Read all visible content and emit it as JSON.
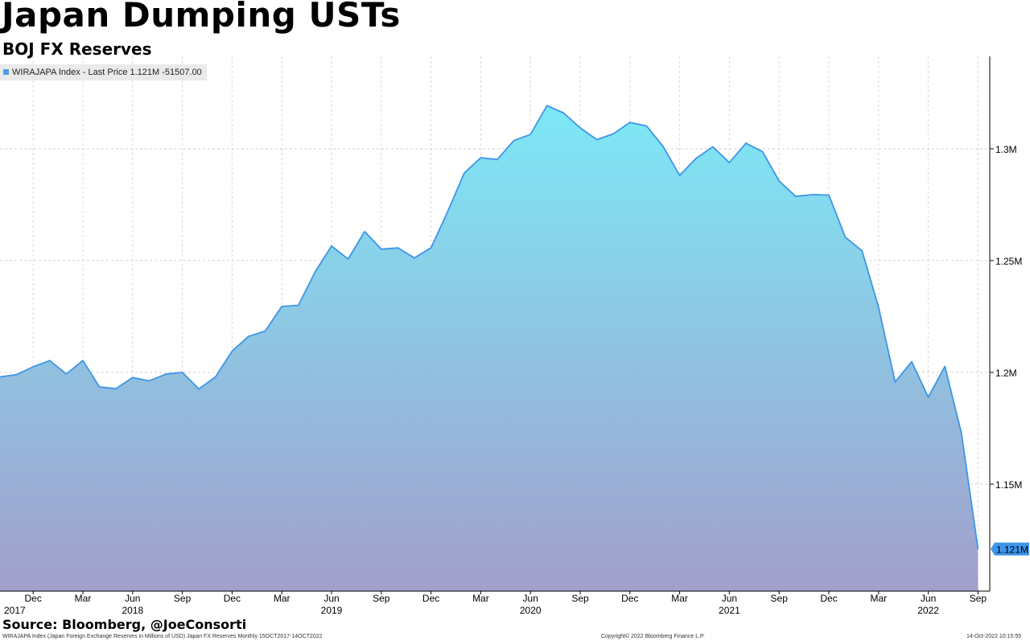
{
  "header": {
    "title": "Japan Dumping USTs",
    "subtitle": "BOJ FX Reserves"
  },
  "legend": {
    "label": "WIRAJAPA Index - Last Price 1.121M -51507.00",
    "swatch_color": "#4a9ee6"
  },
  "footer": {
    "source": "Source: Bloomberg, @JoeConsorti",
    "description": "WIRAJAPA Index (Japan Foreign Exchange Reserves in Millions of USD) Japan FX Reserves  Monthly 15OCT2017-14OCT2022",
    "copyright": "Copyright© 2022 Bloomberg Finance L.P.",
    "timestamp": "14-Oct-2022 10:15:55"
  },
  "chart_data": {
    "type": "area",
    "series": [
      {
        "name": "WIRAJAPA Index",
        "line_color": "#3d95e8",
        "fill_top_color": "#7de8f6",
        "fill_bottom_color": "#a29fcc",
        "x": [
          "2017-10",
          "2017-11",
          "2017-12",
          "2018-01",
          "2018-02",
          "2018-03",
          "2018-04",
          "2018-05",
          "2018-06",
          "2018-07",
          "2018-08",
          "2018-09",
          "2018-10",
          "2018-11",
          "2018-12",
          "2019-01",
          "2019-02",
          "2019-03",
          "2019-04",
          "2019-05",
          "2019-06",
          "2019-07",
          "2019-08",
          "2019-09",
          "2019-10",
          "2019-11",
          "2019-12",
          "2020-01",
          "2020-02",
          "2020-03",
          "2020-04",
          "2020-05",
          "2020-06",
          "2020-07",
          "2020-08",
          "2020-09",
          "2020-10",
          "2020-11",
          "2020-12",
          "2021-01",
          "2021-02",
          "2021-03",
          "2021-04",
          "2021-05",
          "2021-06",
          "2021-07",
          "2021-08",
          "2021-09",
          "2021-10",
          "2021-11",
          "2021-12",
          "2022-01",
          "2022-02",
          "2022-03",
          "2022-04",
          "2022-05",
          "2022-06",
          "2022-07",
          "2022-08",
          "2022-09"
        ],
        "values": [
          1198000,
          1199000,
          1202500,
          1205300,
          1199300,
          1205300,
          1193500,
          1192700,
          1197700,
          1196200,
          1199200,
          1200000,
          1192600,
          1198000,
          1209500,
          1216100,
          1218500,
          1229500,
          1230000,
          1244800,
          1256500,
          1250700,
          1263000,
          1255100,
          1255700,
          1251200,
          1255700,
          1271800,
          1289100,
          1296000,
          1295200,
          1303700,
          1306400,
          1319300,
          1316000,
          1309400,
          1304100,
          1306700,
          1311800,
          1310200,
          1301100,
          1288100,
          1295800,
          1300900,
          1293800,
          1302500,
          1298700,
          1285600,
          1278700,
          1279500,
          1279300,
          1260400,
          1254400,
          1229200,
          1195700,
          1204800,
          1188900,
          1202700,
          1172800,
          1121000
        ]
      }
    ],
    "last_value_label": "1.121M",
    "y_ticks": [
      {
        "value": 1150000,
        "label": "1.15M"
      },
      {
        "value": 1200000,
        "label": "1.2M"
      },
      {
        "value": 1250000,
        "label": "1.25M"
      },
      {
        "value": 1300000,
        "label": "1.3M"
      }
    ],
    "x_ticks": [
      {
        "x": "2017-12",
        "label": "Dec",
        "year": "2017"
      },
      {
        "x": "2018-03",
        "label": "Mar",
        "year": ""
      },
      {
        "x": "2018-06",
        "label": "Jun",
        "year": "2018"
      },
      {
        "x": "2018-09",
        "label": "Sep",
        "year": ""
      },
      {
        "x": "2018-12",
        "label": "Dec",
        "year": ""
      },
      {
        "x": "2019-03",
        "label": "Mar",
        "year": ""
      },
      {
        "x": "2019-06",
        "label": "Jun",
        "year": "2019"
      },
      {
        "x": "2019-09",
        "label": "Sep",
        "year": ""
      },
      {
        "x": "2019-12",
        "label": "Dec",
        "year": ""
      },
      {
        "x": "2020-03",
        "label": "Mar",
        "year": ""
      },
      {
        "x": "2020-06",
        "label": "Jun",
        "year": "2020"
      },
      {
        "x": "2020-09",
        "label": "Sep",
        "year": ""
      },
      {
        "x": "2020-12",
        "label": "Dec",
        "year": ""
      },
      {
        "x": "2021-03",
        "label": "Mar",
        "year": ""
      },
      {
        "x": "2021-06",
        "label": "Jun",
        "year": "2021"
      },
      {
        "x": "2021-09",
        "label": "Sep",
        "year": ""
      },
      {
        "x": "2021-12",
        "label": "Dec",
        "year": ""
      },
      {
        "x": "2022-03",
        "label": "Mar",
        "year": ""
      },
      {
        "x": "2022-06",
        "label": "Jun",
        "year": "2022"
      },
      {
        "x": "2022-09",
        "label": "Sep",
        "year": ""
      }
    ],
    "ylim": [
      1102000,
      1340000
    ],
    "grid": true,
    "legend_position": "top-left",
    "xlabel": "",
    "ylabel": ""
  }
}
